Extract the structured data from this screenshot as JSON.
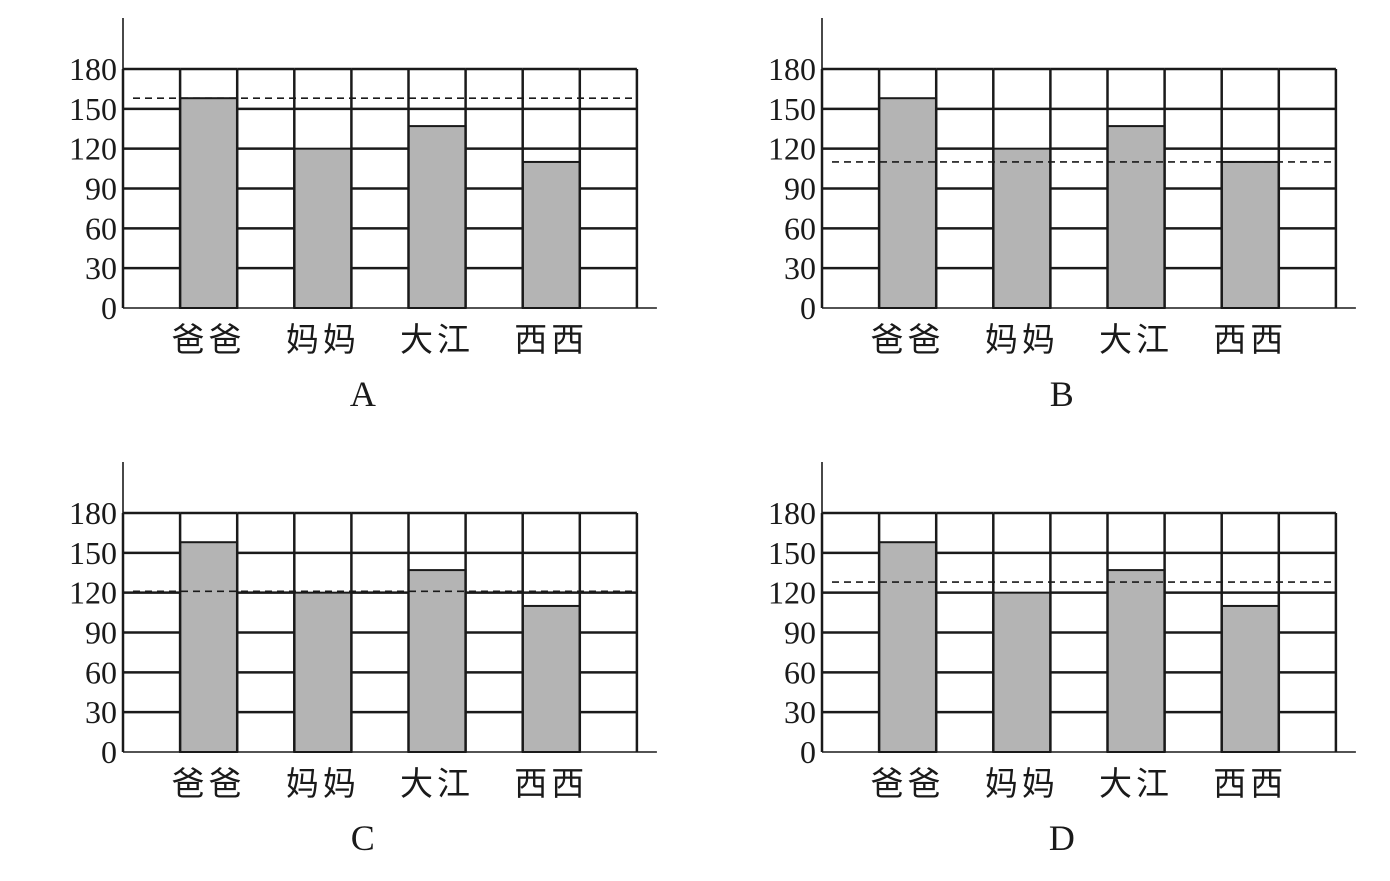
{
  "chart_data": [
    {
      "type": "bar",
      "panel_label": "A",
      "categories": [
        "爸爸",
        "妈妈",
        "大江",
        "西西"
      ],
      "values": [
        158,
        120,
        137,
        110
      ],
      "reference_line": 158,
      "yticks": [
        0,
        30,
        60,
        90,
        120,
        150,
        180
      ],
      "ylim": [
        0,
        180
      ],
      "grid": true
    },
    {
      "type": "bar",
      "panel_label": "B",
      "categories": [
        "爸爸",
        "妈妈",
        "大江",
        "西西"
      ],
      "values": [
        158,
        120,
        137,
        110
      ],
      "reference_line": 110,
      "yticks": [
        0,
        30,
        60,
        90,
        120,
        150,
        180
      ],
      "ylim": [
        0,
        180
      ],
      "grid": true
    },
    {
      "type": "bar",
      "panel_label": "C",
      "categories": [
        "爸爸",
        "妈妈",
        "大江",
        "西西"
      ],
      "values": [
        158,
        120,
        137,
        110
      ],
      "reference_line": 121,
      "yticks": [
        0,
        30,
        60,
        90,
        120,
        150,
        180
      ],
      "ylim": [
        0,
        180
      ],
      "grid": true
    },
    {
      "type": "bar",
      "panel_label": "D",
      "categories": [
        "爸爸",
        "妈妈",
        "大江",
        "西西"
      ],
      "values": [
        158,
        120,
        137,
        110
      ],
      "reference_line": 128,
      "yticks": [
        0,
        30,
        60,
        90,
        120,
        150,
        180
      ],
      "ylim": [
        0,
        180
      ],
      "grid": true
    }
  ],
  "colors": {
    "bar": "#b4b4b4",
    "line": "#1a1a1a"
  }
}
